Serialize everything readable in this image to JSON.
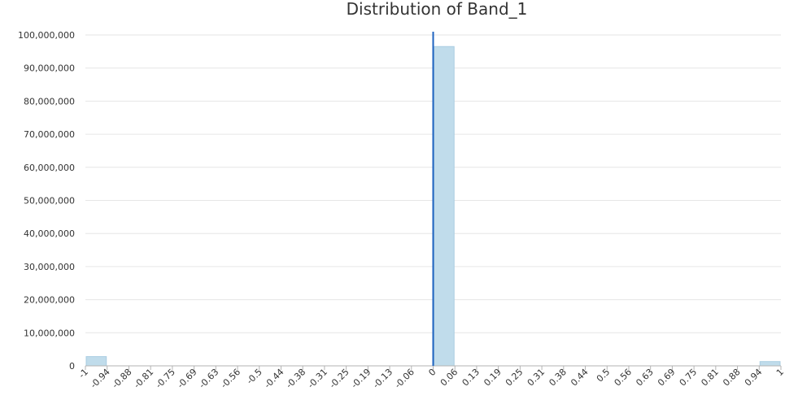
{
  "chart_data": {
    "type": "bar",
    "title": "Distribution of Band_1",
    "xlabel": "",
    "ylabel": "",
    "ylim": [
      0,
      100000000
    ],
    "xlim": [
      -1,
      1
    ],
    "yticks": [
      0,
      10000000,
      20000000,
      30000000,
      40000000,
      50000000,
      60000000,
      70000000,
      80000000,
      90000000,
      100000000
    ],
    "ytick_labels": [
      "0",
      "10,000,000",
      "20,000,000",
      "30,000,000",
      "40,000,000",
      "50,000,000",
      "60,000,000",
      "70,000,000",
      "80,000,000",
      "90,000,000",
      "100,000,000"
    ],
    "xtick_labels": [
      "-1",
      "-0.94",
      "-0.88",
      "-0.81",
      "-0.75",
      "-0.69",
      "-0.63",
      "-0.56",
      "-0.5",
      "-0.44",
      "-0.38",
      "-0.31",
      "-0.25",
      "-0.19",
      "-0.13",
      "-0.06",
      "0",
      "0.06",
      "0.13",
      "0.19",
      "0.25",
      "0.31",
      "0.38",
      "0.44",
      "0.5",
      "0.56",
      "0.63",
      "0.69",
      "0.75",
      "0.81",
      "0.88",
      "0.94",
      "1"
    ],
    "bins": [
      {
        "x0": -1,
        "x1": -0.9375,
        "value": 2800000
      },
      {
        "x0": 0.0,
        "x1": 0.0625,
        "value": 96500000
      },
      {
        "x0": 0.9375,
        "x1": 1,
        "value": 1300000
      }
    ],
    "reference_line": {
      "x": 0,
      "color": "#1f63c0"
    },
    "grid": true,
    "colors": {
      "bar_fill": "#c0dceb",
      "bar_stroke": "#a9cde2",
      "grid": "#e6e6e6",
      "axis": "#b3b3b3"
    }
  }
}
